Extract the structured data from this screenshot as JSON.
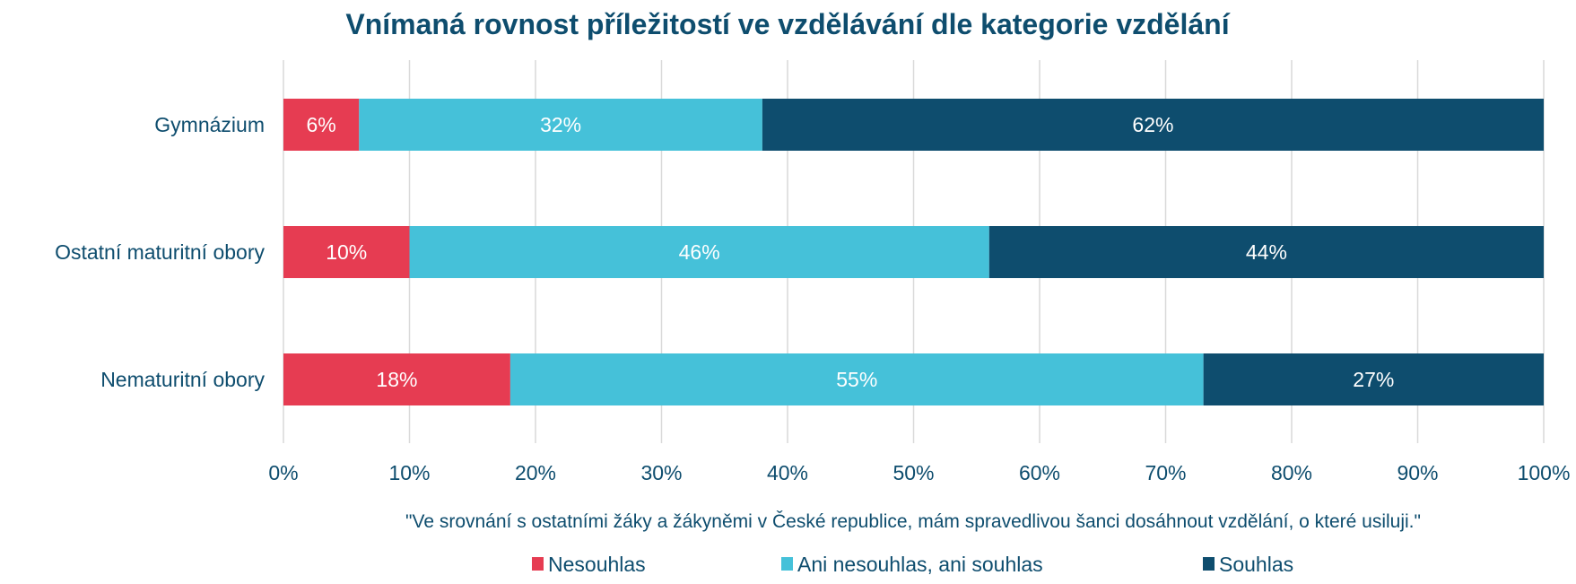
{
  "chart_data": {
    "type": "bar",
    "orientation": "horizontal",
    "stacked": "percent",
    "title": "Vnímaná rovnost příležitostí ve vzdělávání dle kategorie vzdělání",
    "xlabel": "\"Ve srovnání s ostatními žáky a žákyněmi v České republice, mám spravedlivou šanci dosáhnout vzdělání, o které usiluji.\"",
    "ylabel": "",
    "xlim": [
      0,
      100
    ],
    "x_ticks": [
      "0%",
      "10%",
      "20%",
      "30%",
      "40%",
      "50%",
      "60%",
      "70%",
      "80%",
      "90%",
      "100%"
    ],
    "grid": "vertical",
    "legend_position": "bottom",
    "categories": [
      "Gymnázium",
      "Ostatní maturitní obory",
      "Nematuritní obory"
    ],
    "series": [
      {
        "name": "Nesouhlas",
        "color": "#E63C52",
        "values": [
          6,
          10,
          18
        ],
        "labels": [
          "6%",
          "10%",
          "18%"
        ]
      },
      {
        "name": "Ani nesouhlas, ani souhlas",
        "color": "#45C1D9",
        "values": [
          32,
          46,
          55
        ],
        "labels": [
          "32%",
          "46%",
          "55%"
        ]
      },
      {
        "name": "Souhlas",
        "color": "#0E4D6E",
        "values": [
          62,
          44,
          27
        ],
        "labels": [
          "62%",
          "44%",
          "27%"
        ]
      }
    ]
  }
}
